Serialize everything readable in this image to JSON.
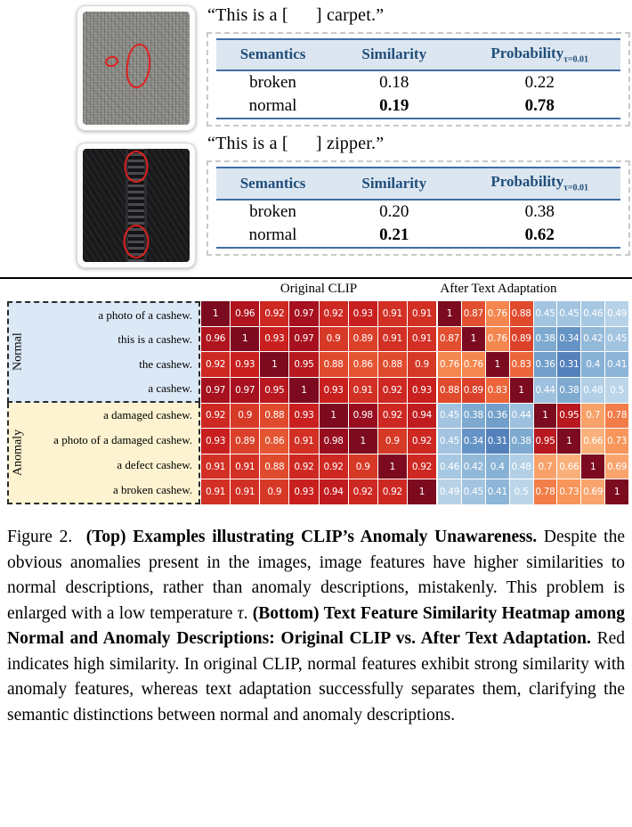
{
  "examples": {
    "carpet_quote": "“This is a [      ] carpet.”",
    "zipper_quote": "“This is a [      ] zipper.”",
    "headers": {
      "semantics": "Semantics",
      "similarity": "Similarity",
      "probability": "Probability",
      "probability_subscript": "τ=0.01"
    },
    "carpet_rows": [
      {
        "semantics": "broken",
        "similarity": "0.18",
        "probability": "0.22",
        "emphasis": false
      },
      {
        "semantics": "normal",
        "similarity": "0.19",
        "probability": "0.78",
        "emphasis": true
      }
    ],
    "zipper_rows": [
      {
        "semantics": "broken",
        "similarity": "0.20",
        "probability": "0.38",
        "emphasis": false
      },
      {
        "semantics": "normal",
        "similarity": "0.21",
        "probability": "0.62",
        "emphasis": true
      }
    ]
  },
  "heatmaps": {
    "groups": [
      {
        "name": "Normal",
        "labels": [
          "a photo of a cashew.",
          "this is a cashew.",
          "the cashew.",
          "a cashew."
        ]
      },
      {
        "name": "Anomaly",
        "labels": [
          "a damaged cashew.",
          "a photo of a damaged cashew.",
          "a defect cashew.",
          "a broken cashew."
        ]
      }
    ]
  },
  "chart_data": [
    {
      "type": "heatmap",
      "title": "Original CLIP",
      "row_labels": [
        "a photo of a cashew.",
        "this is a cashew.",
        "the cashew.",
        "a cashew.",
        "a damaged cashew.",
        "a photo of a damaged cashew.",
        "a defect cashew.",
        "a broken cashew."
      ],
      "col_labels": [
        "a photo of a cashew.",
        "this is a cashew.",
        "the cashew.",
        "a cashew.",
        "a damaged cashew.",
        "a photo of a damaged cashew.",
        "a defect cashew.",
        "a broken cashew."
      ],
      "colormap": "coolwarm (blue=low, red=high)",
      "value_range": [
        0.3,
        1
      ],
      "values": [
        [
          1,
          0.96,
          0.92,
          0.97,
          0.92,
          0.93,
          0.91,
          0.91
        ],
        [
          0.96,
          1,
          0.93,
          0.97,
          0.9,
          0.89,
          0.91,
          0.91
        ],
        [
          0.92,
          0.93,
          1,
          0.95,
          0.88,
          0.86,
          0.88,
          0.9
        ],
        [
          0.97,
          0.97,
          0.95,
          1,
          0.93,
          0.91,
          0.92,
          0.93
        ],
        [
          0.92,
          0.9,
          0.88,
          0.93,
          1,
          0.98,
          0.92,
          0.94
        ],
        [
          0.93,
          0.89,
          0.86,
          0.91,
          0.98,
          1,
          0.9,
          0.92
        ],
        [
          0.91,
          0.91,
          0.88,
          0.92,
          0.92,
          0.9,
          1,
          0.92
        ],
        [
          0.91,
          0.91,
          0.9,
          0.93,
          0.94,
          0.92,
          0.92,
          1
        ]
      ]
    },
    {
      "type": "heatmap",
      "title": "After Text Adaptation",
      "row_labels": [
        "a photo of a cashew.",
        "this is a cashew.",
        "the cashew.",
        "a cashew.",
        "a damaged cashew.",
        "a photo of a damaged cashew.",
        "a defect cashew.",
        "a broken cashew."
      ],
      "col_labels": [
        "a photo of a cashew.",
        "this is a cashew.",
        "the cashew.",
        "a cashew.",
        "a damaged cashew.",
        "a photo of a damaged cashew.",
        "a defect cashew.",
        "a broken cashew."
      ],
      "colormap": "coolwarm (blue=low, red=high)",
      "value_range": [
        0.3,
        1
      ],
      "values": [
        [
          1,
          0.87,
          0.76,
          0.88,
          0.45,
          0.45,
          0.46,
          0.49
        ],
        [
          0.87,
          1,
          0.76,
          0.89,
          0.38,
          0.34,
          0.42,
          0.45
        ],
        [
          0.76,
          0.76,
          1,
          0.83,
          0.36,
          0.31,
          0.4,
          0.41
        ],
        [
          0.88,
          0.89,
          0.83,
          1,
          0.44,
          0.38,
          0.48,
          0.5
        ],
        [
          0.45,
          0.38,
          0.36,
          0.44,
          1,
          0.95,
          0.7,
          0.78
        ],
        [
          0.45,
          0.34,
          0.31,
          0.38,
          0.95,
          1,
          0.66,
          0.73
        ],
        [
          0.46,
          0.42,
          0.4,
          0.48,
          0.7,
          0.66,
          1,
          0.69
        ],
        [
          0.49,
          0.45,
          0.41,
          0.5,
          0.78,
          0.73,
          0.69,
          1
        ]
      ]
    }
  ],
  "caption": {
    "segments": [
      {
        "text": "Figure 2.  ",
        "bold": false
      },
      {
        "text": "(Top) Examples illustrating CLIP’s Anomaly Unawareness. ",
        "bold": true
      },
      {
        "text": "Despite the obvious anomalies present in the images, image features have higher similarities to normal descriptions, rather than anomaly descriptions, mistakenly. This problem is enlarged with a low temperature ",
        "bold": false
      },
      {
        "text": "τ",
        "bold": false,
        "italic": true
      },
      {
        "text": ". ",
        "bold": false
      },
      {
        "text": "(Bottom) Text Feature Similarity Heatmap among Normal and Anomaly Descriptions: Original CLIP vs. After Text Adaptation. ",
        "bold": true
      },
      {
        "text": "Red indicates high similarity. In original CLIP, normal features exhibit strong similarity with anomaly features, whereas text adaptation successfully separates them, clarifying the semantic distinctions between normal and anomaly descriptions.",
        "bold": false
      }
    ]
  },
  "colors": {
    "table_header_text": "#1f4e79",
    "table_header_bg": "#dce6f1",
    "table_rule": "#3f6fa5",
    "normal_group_bg": "#dbe8f6",
    "anomaly_group_bg": "#fdf3d0",
    "annotation_red": "#e02020",
    "heatmap_high": "#7c0b20",
    "heatmap_low": "#4e7bb9"
  }
}
